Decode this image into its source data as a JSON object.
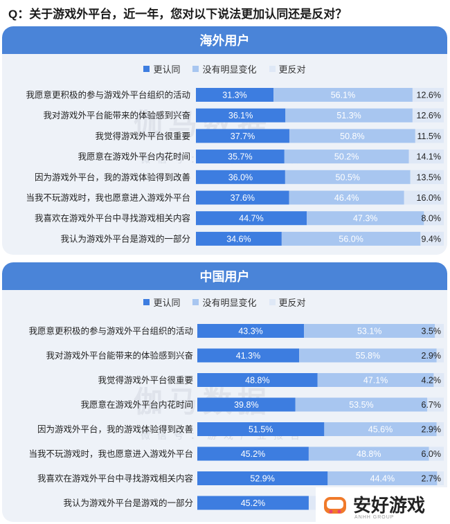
{
  "question": "Q：关于游戏外平台，近一年，您对以下说法更加认同还是反对？",
  "logo": {
    "text": "安好游戏",
    "sub": "ANHH GROUP"
  },
  "watermark": {
    "main": "伽马数据",
    "sub": "微信号：游戏产业报告"
  },
  "colors": {
    "agree": "#3d7de0",
    "neutral": "#a8c6f0",
    "oppose": "#dfe8f6",
    "header": "#4a84d8"
  },
  "chart_data": [
    {
      "type": "bar",
      "stacked": true,
      "orientation": "horizontal",
      "title": "海外用户",
      "legend": [
        "更认同",
        "没有明显变化",
        "更反对"
      ],
      "categories": [
        "我愿意更积极的参与游戏外平台组织的活动",
        "我对游戏外平台能带来的体验感到兴奋",
        "我觉得游戏外平台很重要",
        "我愿意在游戏外平台内花时间",
        "因为游戏外平台，我的游戏体验得到改善",
        "当我不玩游戏时，我也愿意进入游戏外平台",
        "我喜欢在游戏外平台中寻找游戏相关内容",
        "我认为游戏外平台是游戏的一部分"
      ],
      "series": [
        {
          "name": "更认同",
          "values": [
            31.3,
            36.1,
            37.7,
            35.7,
            36.0,
            37.6,
            44.7,
            34.6
          ],
          "labels": [
            "31.3%",
            "36.1%",
            "37.7%",
            "35.7%",
            "36.0%",
            "37.6%",
            "44.7%",
            "34.6%"
          ]
        },
        {
          "name": "没有明显变化",
          "values": [
            56.1,
            51.3,
            50.8,
            50.2,
            50.5,
            46.4,
            47.3,
            56.0
          ],
          "labels": [
            "56.1%",
            "51.3%",
            "50.8%",
            "50.2%",
            "50.5%",
            "46.4%",
            "47.3%",
            "56.0%"
          ]
        },
        {
          "name": "更反对",
          "values": [
            12.6,
            12.6,
            11.5,
            14.1,
            13.5,
            16.0,
            8.0,
            9.4
          ],
          "labels": [
            "12.6%",
            "12.6%",
            "11.5%",
            "14.1%",
            "13.5%",
            "16.0%",
            "8.0%",
            "9.4%"
          ]
        }
      ]
    },
    {
      "type": "bar",
      "stacked": true,
      "orientation": "horizontal",
      "title": "中国用户",
      "legend": [
        "更认同",
        "没有明显变化",
        "更反对"
      ],
      "categories": [
        "我愿意更积极的参与游戏外平台组织的活动",
        "我对游戏外平台能带来的体验感到兴奋",
        "我觉得游戏外平台很重要",
        "我愿意在游戏外平台内花时间",
        "因为游戏外平台，我的游戏体验得到改善",
        "当我不玩游戏时，我也愿意进入游戏外平台",
        "我喜欢在游戏外平台中寻找游戏相关内容",
        "我认为游戏外平台是游戏的一部分"
      ],
      "series": [
        {
          "name": "更认同",
          "values": [
            43.3,
            41.3,
            48.8,
            39.8,
            51.5,
            45.2,
            52.9,
            45.2
          ],
          "labels": [
            "43.3%",
            "41.3%",
            "48.8%",
            "39.8%",
            "51.5%",
            "45.2%",
            "52.9%",
            "45.2%"
          ]
        },
        {
          "name": "没有明显变化",
          "values": [
            53.1,
            55.8,
            47.1,
            53.5,
            45.6,
            48.8,
            44.4,
            null
          ],
          "labels": [
            "53.1%",
            "55.8%",
            "47.1%",
            "53.5%",
            "45.6%",
            "48.8%",
            "44.4%",
            ""
          ]
        },
        {
          "name": "更反对",
          "values": [
            3.5,
            2.9,
            4.2,
            6.7,
            2.9,
            6.0,
            2.7,
            null
          ],
          "labels": [
            "3.5%",
            "2.9%",
            "4.2%",
            "6.7%",
            "2.9%",
            "6.0%",
            "2.7%",
            ""
          ]
        }
      ]
    }
  ]
}
